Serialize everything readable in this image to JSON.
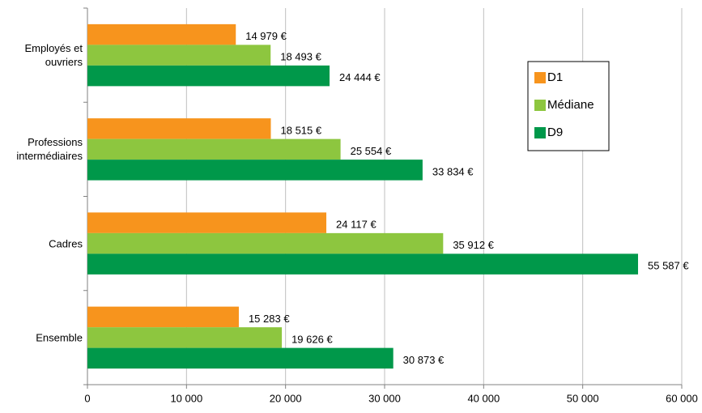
{
  "chart_data": {
    "type": "hbar",
    "categories": [
      "Employés et ouvriers",
      "Professions intermédiaires",
      "Cadres",
      "Ensemble"
    ],
    "series": [
      {
        "name": "D1",
        "color": "#f7941d",
        "values": [
          14979,
          18515,
          24117,
          15283
        ],
        "value_labels": [
          "14 979 €",
          "18 515 €",
          "24 117 €",
          "15 283 €"
        ]
      },
      {
        "name": "Médiane",
        "color": "#8dc63f",
        "values": [
          18493,
          25554,
          35912,
          19626
        ],
        "value_labels": [
          "18 493 €",
          "25 554 €",
          "35 912 €",
          "19 626 €"
        ]
      },
      {
        "name": "D9",
        "color": "#00984a",
        "values": [
          24444,
          33834,
          55587,
          30873
        ],
        "value_labels": [
          "24 444 €",
          "33 834 €",
          "55 587 €",
          "30 873 €"
        ]
      }
    ],
    "xlim": [
      0,
      60000
    ],
    "xticks": [
      0,
      {
        "value": 10000,
        "label": "10 000"
      },
      {
        "value": 20000,
        "label": "20 000"
      },
      {
        "value": 30000,
        "label": "30 000"
      },
      {
        "value": 40000,
        "label": "40 000"
      },
      {
        "value": 50000,
        "label": "50 000"
      },
      {
        "value": 60000,
        "label": "60 000"
      }
    ],
    "grid": true,
    "legend_position": "right"
  }
}
